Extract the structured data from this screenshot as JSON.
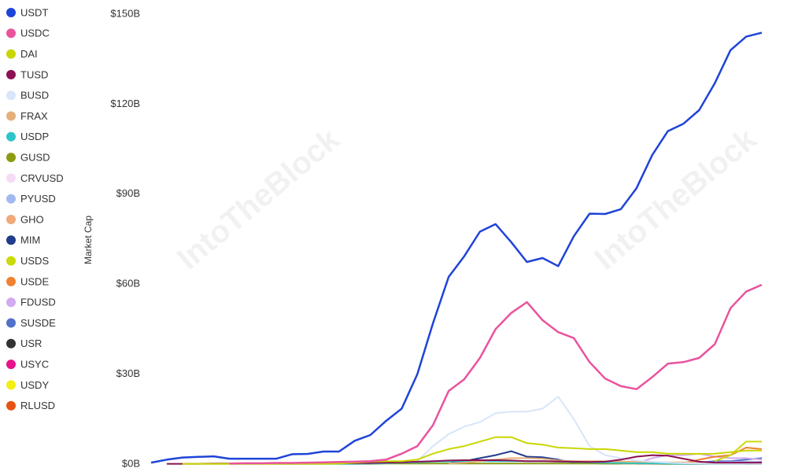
{
  "chart_data": {
    "type": "line",
    "y_label": "Market Cap",
    "watermark": "IntoTheBlock",
    "ylim": [
      0,
      150
    ],
    "yticks": [
      {
        "value": 0,
        "label": "$0B"
      },
      {
        "value": 30,
        "label": "$30B"
      },
      {
        "value": 60,
        "label": "$60B"
      },
      {
        "value": 90,
        "label": "$90B"
      },
      {
        "value": 120,
        "label": "$120B"
      },
      {
        "value": 150,
        "label": "$150B"
      }
    ],
    "grid": false,
    "series": [
      {
        "name": "USDT",
        "color": "#1f44d8",
        "values": [
          0.5,
          1.5,
          2.2,
          2.4,
          2.6,
          1.8,
          1.8,
          1.8,
          1.8,
          3.3,
          3.4,
          4.2,
          4.2,
          7.8,
          9.7,
          14.4,
          18.5,
          30,
          47,
          62.4,
          69.3,
          77.5,
          80,
          74,
          67.4,
          68.7,
          66,
          76,
          83.5,
          83.4,
          85,
          92,
          103,
          111,
          113.5,
          118,
          127,
          138,
          142.5,
          143.8
        ]
      },
      {
        "name": "USDC",
        "color": "#e9539e",
        "values": [
          null,
          null,
          null,
          null,
          null,
          0.2,
          0.3,
          0.3,
          0.4,
          0.4,
          0.5,
          0.6,
          0.7,
          0.8,
          1,
          1.5,
          3.5,
          6,
          13,
          24.4,
          28.3,
          35.4,
          45,
          50.4,
          54,
          48,
          44,
          42,
          34,
          28.5,
          26,
          25,
          29,
          33.5,
          34,
          35.4,
          40,
          52,
          57.5,
          59.8
        ]
      },
      {
        "name": "DAI",
        "color": "#c9d600",
        "values": [
          null,
          null,
          0.1,
          0.1,
          0.1,
          0.1,
          0.1,
          0.1,
          0.1,
          0.1,
          0.1,
          0.1,
          0.2,
          0.5,
          0.8,
          1,
          1,
          1.5,
          3.5,
          5,
          6,
          7.5,
          9,
          9,
          7,
          6.5,
          5.5,
          5.3,
          5,
          5,
          4.5,
          4,
          4,
          3.5,
          3.5,
          3.4,
          3.5,
          4,
          4.5,
          4.5
        ]
      },
      {
        "name": "TUSD",
        "color": "#8b1152",
        "values": [
          null,
          0.1,
          0.1,
          0.1,
          0.2,
          0.2,
          0.2,
          0.2,
          0.2,
          0.2,
          0.2,
          0.2,
          0.3,
          0.3,
          0.4,
          0.5,
          0.6,
          0.8,
          1,
          1.2,
          1.3,
          1.3,
          1.3,
          1.2,
          1,
          1,
          0.9,
          0.8,
          0.7,
          0.8,
          1.5,
          2.5,
          3,
          2.8,
          1.8,
          0.8,
          0.5,
          0.5,
          0.5,
          0.5
        ]
      },
      {
        "name": "BUSD",
        "color": "#d8e5fa",
        "values": [
          null,
          null,
          null,
          null,
          null,
          null,
          null,
          null,
          null,
          null,
          null,
          null,
          null,
          null,
          null,
          null,
          null,
          1,
          6,
          10,
          12.5,
          14,
          17,
          17.5,
          17.5,
          18.5,
          22.5,
          15,
          6,
          3,
          2,
          1.2,
          0.8,
          0.5,
          0.3,
          0.2,
          0.1,
          0.1,
          0.1,
          0.1
        ]
      },
      {
        "name": "FRAX",
        "color": "#e3b07c",
        "values": [
          null,
          null,
          null,
          null,
          null,
          null,
          null,
          null,
          null,
          null,
          null,
          null,
          null,
          null,
          null,
          null,
          null,
          null,
          null,
          0.2,
          0.5,
          1,
          1.5,
          2,
          2,
          1.8,
          1.2,
          1,
          1,
          1,
          0.9,
          0.8,
          0.7,
          0.6,
          0.6,
          0.5,
          0.4,
          0.4,
          0.3,
          0.3
        ]
      },
      {
        "name": "USDP",
        "color": "#2ec5c9",
        "values": [
          null,
          null,
          null,
          null,
          null,
          null,
          null,
          null,
          0.1,
          0.1,
          0.1,
          0.1,
          0.1,
          0.1,
          0.2,
          0.3,
          0.5,
          0.6,
          0.8,
          0.9,
          1,
          1,
          1,
          1,
          1,
          1,
          0.8,
          0.7,
          0.6,
          0.5,
          0.4,
          0.3,
          0.3,
          0.2,
          0.1,
          0.1,
          0.1,
          0.1,
          0.1,
          0.1
        ]
      },
      {
        "name": "GUSD",
        "color": "#8c9b12",
        "values": [
          null,
          null,
          null,
          0.1,
          0.1,
          0.1,
          0.1,
          0.1,
          0.1,
          0.1,
          0.1,
          0.1,
          0.1,
          0.1,
          0.1,
          0.2,
          0.2,
          0.2,
          0.2,
          0.2,
          0.2,
          0.2,
          0.2,
          0.2,
          0.2,
          0.2,
          0.2,
          0.2,
          0.2,
          0.2,
          0.2,
          0.2,
          0.2,
          0.1,
          0.1,
          0.1,
          0.1,
          0.1,
          0.1,
          0.1
        ]
      },
      {
        "name": "CRVUSD",
        "color": "#f6dbf6",
        "values": [
          null,
          null,
          null,
          null,
          null,
          null,
          null,
          null,
          null,
          null,
          null,
          null,
          null,
          null,
          null,
          null,
          null,
          null,
          null,
          null,
          null,
          null,
          null,
          null,
          null,
          null,
          null,
          null,
          null,
          null,
          0.05,
          0.1,
          0.1,
          0.1,
          0.15,
          0.2,
          0.15,
          0.1,
          0.1,
          0.1
        ]
      },
      {
        "name": "PYUSD",
        "color": "#a2b9f0",
        "values": [
          null,
          null,
          null,
          null,
          null,
          null,
          null,
          null,
          null,
          null,
          null,
          null,
          null,
          null,
          null,
          null,
          null,
          null,
          null,
          null,
          null,
          null,
          null,
          null,
          null,
          null,
          null,
          null,
          null,
          null,
          null,
          0.05,
          0.1,
          0.2,
          0.3,
          0.4,
          0.6,
          0.7,
          0.8,
          0.7
        ]
      },
      {
        "name": "GHO",
        "color": "#f1a97a",
        "values": [
          null,
          null,
          null,
          null,
          null,
          null,
          null,
          null,
          null,
          null,
          null,
          null,
          null,
          null,
          null,
          null,
          null,
          null,
          null,
          null,
          null,
          null,
          null,
          null,
          null,
          null,
          null,
          null,
          null,
          null,
          null,
          0.05,
          0.1,
          0.1,
          0.1,
          0.1,
          0.15,
          0.2,
          0.2,
          0.2
        ]
      },
      {
        "name": "MIM",
        "color": "#223c8c",
        "values": [
          null,
          null,
          null,
          null,
          null,
          null,
          null,
          null,
          null,
          null,
          null,
          null,
          null,
          null,
          null,
          null,
          null,
          null,
          null,
          0.2,
          1,
          2,
          3,
          4.3,
          2.5,
          2.3,
          1.5,
          0.5,
          0.3,
          0.2,
          0.2,
          0.15,
          0.1,
          0.1,
          0.1,
          0.1,
          0.1,
          0.1,
          0.1,
          0.1
        ]
      },
      {
        "name": "USDS",
        "color": "#cbd90a",
        "values": [
          null,
          null,
          null,
          null,
          null,
          null,
          null,
          null,
          null,
          null,
          null,
          null,
          null,
          null,
          null,
          null,
          null,
          null,
          null,
          null,
          null,
          null,
          null,
          null,
          null,
          null,
          null,
          null,
          null,
          null,
          null,
          null,
          null,
          null,
          null,
          null,
          1,
          3,
          7.5,
          7.5
        ]
      },
      {
        "name": "USDE",
        "color": "#f08232",
        "values": [
          null,
          null,
          null,
          null,
          null,
          null,
          null,
          null,
          null,
          null,
          null,
          null,
          null,
          null,
          null,
          null,
          null,
          null,
          null,
          null,
          null,
          null,
          null,
          null,
          null,
          null,
          null,
          null,
          null,
          null,
          null,
          null,
          null,
          null,
          0.3,
          1.5,
          2.5,
          3,
          5.5,
          5
        ]
      },
      {
        "name": "FDUSD",
        "color": "#d2aaf1",
        "values": [
          null,
          null,
          null,
          null,
          null,
          null,
          null,
          null,
          null,
          null,
          null,
          null,
          null,
          null,
          null,
          null,
          null,
          null,
          null,
          null,
          null,
          null,
          null,
          null,
          null,
          null,
          null,
          null,
          null,
          null,
          null,
          0.3,
          2,
          3,
          3,
          3.5,
          2.5,
          2,
          2,
          1.5
        ]
      },
      {
        "name": "SUSDE",
        "color": "#5271c9",
        "values": [
          null,
          null,
          null,
          null,
          null,
          null,
          null,
          null,
          null,
          null,
          null,
          null,
          null,
          null,
          null,
          null,
          null,
          null,
          null,
          null,
          null,
          null,
          null,
          null,
          null,
          null,
          null,
          null,
          null,
          null,
          null,
          null,
          null,
          null,
          0.2,
          0.5,
          1,
          1,
          1.5,
          2
        ]
      },
      {
        "name": "USR",
        "color": "#333333",
        "values": [
          null,
          null,
          null,
          null,
          null,
          null,
          null,
          null,
          null,
          null,
          null,
          null,
          null,
          null,
          null,
          null,
          null,
          null,
          null,
          null,
          null,
          null,
          null,
          null,
          null,
          null,
          null,
          null,
          null,
          null,
          null,
          null,
          null,
          null,
          null,
          null,
          null,
          null,
          0.1,
          0.3
        ]
      },
      {
        "name": "USYC",
        "color": "#e8128b",
        "values": [
          null,
          null,
          null,
          null,
          null,
          null,
          null,
          null,
          null,
          null,
          null,
          null,
          null,
          null,
          null,
          null,
          null,
          null,
          null,
          null,
          null,
          null,
          null,
          null,
          null,
          null,
          null,
          null,
          null,
          null,
          null,
          null,
          null,
          null,
          null,
          0.1,
          0.2,
          0.3,
          0.5,
          0.8
        ]
      },
      {
        "name": "USDY",
        "color": "#f2ef12",
        "values": [
          null,
          null,
          null,
          null,
          null,
          null,
          null,
          null,
          null,
          null,
          null,
          null,
          null,
          null,
          null,
          null,
          null,
          null,
          null,
          null,
          null,
          null,
          null,
          null,
          null,
          null,
          null,
          null,
          null,
          null,
          null,
          null,
          null,
          null,
          0.1,
          0.2,
          0.3,
          0.4,
          0.5,
          0.6
        ]
      },
      {
        "name": "RLUSD",
        "color": "#e65212",
        "values": [
          null,
          null,
          null,
          null,
          null,
          null,
          null,
          null,
          null,
          null,
          null,
          null,
          null,
          null,
          null,
          null,
          null,
          null,
          null,
          null,
          null,
          null,
          null,
          null,
          null,
          null,
          null,
          null,
          null,
          null,
          null,
          null,
          null,
          null,
          null,
          null,
          null,
          null,
          0.02,
          0.1
        ]
      }
    ]
  }
}
